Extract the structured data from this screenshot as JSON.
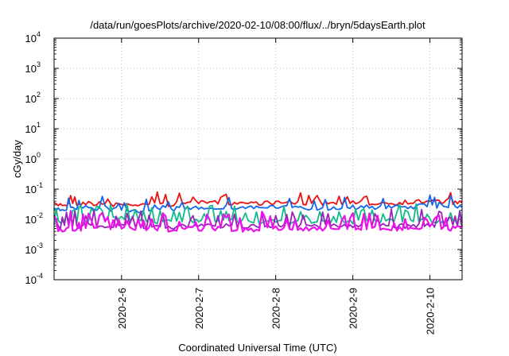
{
  "chart_data": {
    "type": "line",
    "title": "/data/run/goesPlots/archive/2020-02-10/08:00/flux/../bryn/5daysEarth.plot",
    "xlabel": "Coordinated Universal Time (UTC)",
    "ylabel": "cGy/day",
    "yscale": "log",
    "ylim": [
      0.0001,
      10000
    ],
    "xlim": [
      "2020-02-05 03:00",
      "2020-02-10 10:00"
    ],
    "grid": true,
    "y_ticks": [
      {
        "base": "10",
        "exp": "-4",
        "value": 0.0001
      },
      {
        "base": "10",
        "exp": "-3",
        "value": 0.001
      },
      {
        "base": "10",
        "exp": "-2",
        "value": 0.01
      },
      {
        "base": "10",
        "exp": "-1",
        "value": 0.1
      },
      {
        "base": "10",
        "exp": "0",
        "value": 1
      },
      {
        "base": "10",
        "exp": "1",
        "value": 10
      },
      {
        "base": "10",
        "exp": "2",
        "value": 100
      },
      {
        "base": "10",
        "exp": "3",
        "value": 1000
      },
      {
        "base": "10",
        "exp": "4",
        "value": 10000
      }
    ],
    "x_ticks": [
      {
        "label": "2020-2-6",
        "value": "2020-02-06 00:00"
      },
      {
        "label": "2020-2-7",
        "value": "2020-02-07 00:00"
      },
      {
        "label": "2020-2-8",
        "value": "2020-02-08 00:00"
      },
      {
        "label": "2020-2-9",
        "value": "2020-02-09 00:00"
      },
      {
        "label": "2020-2-10",
        "value": "2020-02-10 00:00"
      }
    ],
    "series": [
      {
        "color": "#ee1111",
        "x": [
          "2020-02-05 03:00",
          "2020-02-05 12:00",
          "2020-02-06 00:00",
          "2020-02-06 12:00",
          "2020-02-07 00:00",
          "2020-02-07 12:00",
          "2020-02-08 00:00",
          "2020-02-08 12:00",
          "2020-02-09 00:00",
          "2020-02-09 12:00",
          "2020-02-10 00:00",
          "2020-02-10 10:00"
        ],
        "y": [
          0.03,
          0.035,
          0.03,
          0.03,
          0.035,
          0.035,
          0.035,
          0.035,
          0.035,
          0.035,
          0.04,
          0.035
        ]
      },
      {
        "color": "#1166ee",
        "x": [
          "2020-02-05 03:00",
          "2020-02-05 12:00",
          "2020-02-06 00:00",
          "2020-02-06 12:00",
          "2020-02-07 00:00",
          "2020-02-07 12:00",
          "2020-02-08 00:00",
          "2020-02-08 12:00",
          "2020-02-09 00:00",
          "2020-02-09 12:00",
          "2020-02-10 00:00",
          "2020-02-10 10:00"
        ],
        "y": [
          0.02,
          0.025,
          0.02,
          0.02,
          0.025,
          0.025,
          0.025,
          0.022,
          0.025,
          0.025,
          0.028,
          0.025
        ]
      },
      {
        "color": "#11bb88",
        "x": [
          "2020-02-05 03:00",
          "2020-02-05 12:00",
          "2020-02-06 00:00",
          "2020-02-06 12:00",
          "2020-02-07 00:00",
          "2020-02-07 12:00",
          "2020-02-08 00:00",
          "2020-02-08 12:00",
          "2020-02-09 00:00",
          "2020-02-09 12:00",
          "2020-02-10 00:00",
          "2020-02-10 10:00"
        ],
        "y": [
          0.008,
          0.009,
          0.012,
          0.008,
          0.009,
          0.009,
          0.008,
          0.009,
          0.008,
          0.009,
          0.009,
          0.008
        ]
      },
      {
        "color": "#9922bb",
        "x": [
          "2020-02-05 03:00",
          "2020-02-05 12:00",
          "2020-02-06 00:00",
          "2020-02-06 12:00",
          "2020-02-07 00:00",
          "2020-02-07 12:00",
          "2020-02-08 00:00",
          "2020-02-08 12:00",
          "2020-02-09 00:00",
          "2020-02-09 12:00",
          "2020-02-10 00:00",
          "2020-02-10 10:00"
        ],
        "y": [
          0.0055,
          0.006,
          0.006,
          0.0055,
          0.006,
          0.006,
          0.006,
          0.006,
          0.006,
          0.006,
          0.006,
          0.006
        ]
      },
      {
        "color": "#ee11ee",
        "x": [
          "2020-02-05 03:00",
          "2020-02-05 12:00",
          "2020-02-06 00:00",
          "2020-02-06 12:00",
          "2020-02-07 00:00",
          "2020-02-07 12:00",
          "2020-02-08 00:00",
          "2020-02-08 12:00",
          "2020-02-09 00:00",
          "2020-02-09 12:00",
          "2020-02-10 00:00",
          "2020-02-10 10:00"
        ],
        "y": [
          0.0045,
          0.005,
          0.005,
          0.0045,
          0.005,
          0.0045,
          0.005,
          0.005,
          0.005,
          0.005,
          0.005,
          0.005
        ]
      }
    ]
  }
}
